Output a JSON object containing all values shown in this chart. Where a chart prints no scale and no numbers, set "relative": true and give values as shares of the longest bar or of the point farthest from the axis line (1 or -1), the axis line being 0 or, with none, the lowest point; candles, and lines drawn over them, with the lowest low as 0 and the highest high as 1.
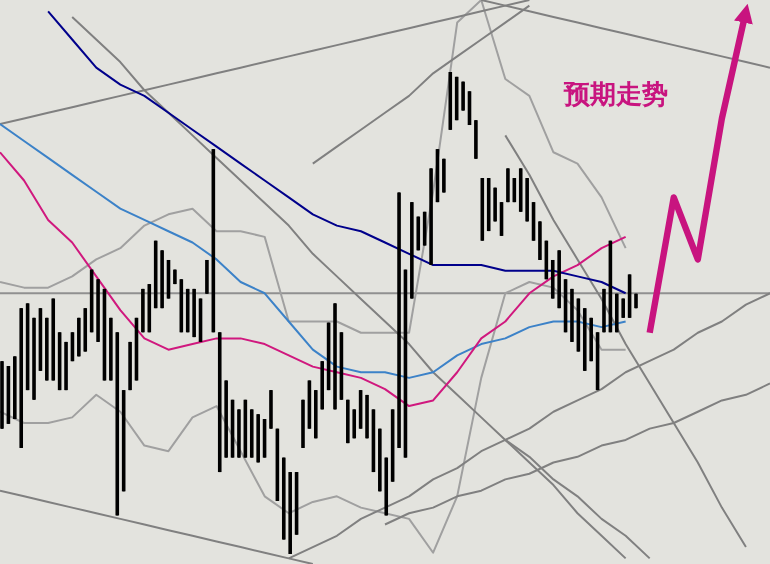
{
  "chart_data": [
    {
      "type": "candlestick",
      "relative": true,
      "categories": [
        null,
        null,
        null,
        null,
        null,
        null,
        null,
        null,
        null,
        null,
        null,
        null,
        null,
        null,
        null,
        null,
        null,
        null,
        null,
        null,
        null,
        null,
        null,
        null,
        null,
        null,
        null,
        null,
        null,
        null,
        null,
        null,
        null,
        null,
        null,
        null,
        null,
        null,
        null,
        null,
        null,
        null,
        null,
        null,
        null,
        null,
        null,
        null,
        null,
        null,
        null,
        null,
        null,
        null,
        null,
        null,
        null,
        null,
        null,
        null,
        null,
        null,
        null,
        null,
        null,
        null,
        null,
        null,
        null,
        null,
        null,
        null,
        null,
        null,
        null,
        null,
        null,
        null,
        null,
        null,
        null,
        null,
        null,
        null,
        null,
        null,
        null,
        null,
        null,
        null,
        null,
        null,
        null,
        null,
        null,
        null,
        null,
        null,
        null,
        null
      ],
      "ohlc": [
        [
          0.4,
          0.4,
          0.26,
          0.26
        ],
        [
          0.39,
          0.39,
          0.27,
          0.27
        ],
        [
          0.41,
          0.41,
          0.28,
          0.28
        ],
        [
          0.51,
          0.51,
          0.22,
          0.22
        ],
        [
          0.52,
          0.52,
          0.34,
          0.34
        ],
        [
          0.49,
          0.49,
          0.32,
          0.32
        ],
        [
          0.51,
          0.51,
          0.38,
          0.38
        ],
        [
          0.49,
          0.49,
          0.36,
          0.36
        ],
        [
          0.53,
          0.53,
          0.36,
          0.36
        ],
        [
          0.46,
          0.46,
          0.34,
          0.34
        ],
        [
          0.44,
          0.44,
          0.34,
          0.34
        ],
        [
          0.46,
          0.46,
          0.4,
          0.4
        ],
        [
          0.49,
          0.49,
          0.41,
          0.41
        ],
        [
          0.51,
          0.51,
          0.42,
          0.42
        ],
        [
          0.59,
          0.59,
          0.46,
          0.46
        ],
        [
          0.57,
          0.57,
          0.44,
          0.44
        ],
        [
          0.55,
          0.55,
          0.36,
          0.36
        ],
        [
          0.49,
          0.49,
          0.36,
          0.36
        ],
        [
          0.46,
          0.46,
          0.08,
          0.08
        ],
        [
          0.34,
          0.34,
          0.13,
          0.13
        ],
        [
          0.44,
          0.44,
          0.34,
          0.34
        ],
        [
          0.49,
          0.49,
          0.36,
          0.36
        ],
        [
          0.55,
          0.55,
          0.46,
          0.46
        ],
        [
          0.56,
          0.56,
          0.46,
          0.46
        ],
        [
          0.65,
          0.65,
          0.51,
          0.51
        ],
        [
          0.63,
          0.63,
          0.51,
          0.51
        ],
        [
          0.61,
          0.61,
          0.53,
          0.53
        ],
        [
          0.59,
          0.59,
          0.56,
          0.56
        ],
        [
          0.57,
          0.57,
          0.46,
          0.46
        ],
        [
          0.55,
          0.55,
          0.46,
          0.46
        ],
        [
          0.55,
          0.55,
          0.45,
          0.45
        ],
        [
          0.53,
          0.53,
          0.44,
          0.44
        ],
        [
          0.61,
          0.61,
          0.54,
          0.54
        ],
        [
          0.84,
          0.84,
          0.46,
          0.46
        ],
        [
          0.46,
          0.46,
          0.17,
          0.17
        ],
        [
          0.36,
          0.36,
          0.2,
          0.2
        ],
        [
          0.32,
          0.32,
          0.2,
          0.2
        ],
        [
          0.3,
          0.3,
          0.2,
          0.2
        ],
        [
          0.32,
          0.32,
          0.2,
          0.2
        ],
        [
          0.3,
          0.3,
          0.2,
          0.2
        ],
        [
          0.29,
          0.29,
          0.19,
          0.19
        ],
        [
          0.28,
          0.28,
          0.2,
          0.2
        ],
        [
          0.34,
          0.34,
          0.26,
          0.26
        ],
        [
          0.26,
          0.26,
          0.11,
          0.11
        ],
        [
          0.2,
          0.2,
          0.03,
          0.03
        ],
        [
          0.17,
          0.17,
          0,
          0
        ],
        [
          0.17,
          0.17,
          0.04,
          0.04
        ],
        [
          0.32,
          0.32,
          0.22,
          0.22
        ],
        [
          0.36,
          0.36,
          0.26,
          0.26
        ],
        [
          0.34,
          0.34,
          0.24,
          0.24
        ],
        [
          0.4,
          0.4,
          0.3,
          0.3
        ],
        [
          0.48,
          0.48,
          0.34,
          0.34
        ],
        [
          0.52,
          0.52,
          0.3,
          0.3
        ],
        [
          0.46,
          0.46,
          0.32,
          0.32
        ],
        [
          0.32,
          0.32,
          0.23,
          0.23
        ],
        [
          0.3,
          0.3,
          0.24,
          0.24
        ],
        [
          0.34,
          0.34,
          0.26,
          0.26
        ],
        [
          0.33,
          0.33,
          0.24,
          0.24
        ],
        [
          0.3,
          0.3,
          0.17,
          0.17
        ],
        [
          0.26,
          0.26,
          0.13,
          0.13
        ],
        [
          0.2,
          0.2,
          0.08,
          0.08
        ],
        [
          0.3,
          0.3,
          0.15,
          0.15
        ],
        [
          0.75,
          0.75,
          0.22,
          0.22
        ],
        [
          0.59,
          0.59,
          0.2,
          0.2
        ],
        [
          0.73,
          0.73,
          0.53,
          0.53
        ],
        [
          0.7,
          0.7,
          0.63,
          0.63
        ],
        [
          0.71,
          0.71,
          0.64,
          0.64
        ],
        [
          0.8,
          0.8,
          0.6,
          0.6
        ],
        [
          0.84,
          0.84,
          0.73,
          0.73
        ],
        [
          0.82,
          0.82,
          0.75,
          0.75
        ],
        [
          1,
          1,
          0.88,
          0.88
        ],
        [
          0.99,
          0.99,
          0.9,
          0.9
        ],
        [
          0.98,
          0.98,
          0.92,
          0.92
        ],
        [
          0.96,
          0.96,
          0.89,
          0.89
        ],
        [
          0.9,
          0.9,
          0.82,
          0.82
        ],
        [
          0.78,
          0.78,
          0.65,
          0.65
        ],
        [
          0.78,
          0.78,
          0.67,
          0.67
        ],
        [
          0.76,
          0.76,
          0.69,
          0.69
        ],
        [
          0.73,
          0.73,
          0.66,
          0.66
        ],
        [
          0.8,
          0.8,
          0.73,
          0.73
        ],
        [
          0.78,
          0.78,
          0.73,
          0.73
        ],
        [
          0.8,
          0.8,
          0.71,
          0.71
        ],
        [
          0.78,
          0.78,
          0.69,
          0.69
        ],
        [
          0.73,
          0.73,
          0.65,
          0.65
        ],
        [
          0.69,
          0.69,
          0.61,
          0.61
        ],
        [
          0.65,
          0.65,
          0.57,
          0.57
        ],
        [
          0.61,
          0.61,
          0.53,
          0.53
        ],
        [
          0.63,
          0.63,
          0.51,
          0.51
        ],
        [
          0.57,
          0.57,
          0.46,
          0.46
        ],
        [
          0.55,
          0.55,
          0.44,
          0.44
        ],
        [
          0.53,
          0.53,
          0.42,
          0.42
        ],
        [
          0.51,
          0.51,
          0.38,
          0.38
        ],
        [
          0.49,
          0.49,
          0.4,
          0.4
        ],
        [
          0.46,
          0.46,
          0.34,
          0.34
        ],
        [
          0.55,
          0.55,
          0.46,
          0.46
        ],
        [
          0.65,
          0.65,
          0.46,
          0.46
        ],
        [
          0.54,
          0.54,
          0.46,
          0.46
        ],
        [
          0.53,
          0.53,
          0.49,
          0.49
        ],
        [
          0.58,
          0.58,
          0.49,
          0.49
        ],
        [
          0.54,
          0.54,
          0.51,
          0.51
        ]
      ]
    },
    {
      "type": "line",
      "relative": true,
      "categories": [
        null,
        null,
        null,
        null,
        null,
        null,
        null,
        null,
        null,
        null,
        null,
        null,
        null,
        null,
        null,
        null,
        null,
        null,
        null,
        null,
        null,
        null,
        null,
        null,
        null,
        null,
        null,
        null,
        null,
        null,
        null,
        null,
        null
      ],
      "series": [
        {
          "color": "#a0a0a0",
          "values": [
            0.5,
            0.49,
            0.49,
            0.51,
            0.54,
            0.56,
            0.6,
            0.62,
            0.63,
            0.59,
            0.59,
            0.58,
            0.43,
            0.43,
            0.43,
            0.41,
            0.41,
            0.41,
            0.66,
            0.96,
            1,
            0.86,
            0.83,
            0.73,
            0.71,
            0.65,
            0.56,
            null,
            null,
            null,
            null,
            null,
            null
          ]
        },
        {
          "color": "#a0a0a0",
          "values": [
            0.27,
            0.25,
            0.25,
            0.26,
            0.3,
            0.27,
            0.21,
            0.2,
            0.26,
            0.28,
            0.2,
            0.12,
            0.09,
            0.11,
            0.12,
            0.1,
            0.09,
            0.08,
            0.02,
            0.12,
            0.33,
            0.48,
            0.5,
            0.49,
            0.45,
            0.38,
            0.38,
            null,
            null,
            null,
            null,
            null,
            null
          ]
        },
        {
          "color": "#808080",
          "values": [
            0.78,
            0.79,
            0.8,
            0.81,
            0.82,
            0.83,
            0.84,
            0.85,
            0.86,
            0.87,
            0.88,
            0.89,
            0.9,
            0.91,
            0.92,
            0.93,
            0.94,
            0.95,
            0.96,
            0.97,
            0.98,
            0.99,
            1.0,
            null,
            null,
            null,
            null,
            null,
            null,
            null,
            null,
            null,
            null
          ]
        },
        {
          "color": "#808080",
          "values": [
            null,
            null,
            null,
            0.97,
            0.93,
            0.89,
            0.84,
            0.8,
            0.76,
            0.72,
            0.68,
            0.64,
            0.6,
            0.55,
            0.51,
            0.47,
            0.43,
            0.39,
            0.34,
            0.3,
            0.26,
            0.22,
            0.18,
            0.14,
            0.09,
            0.05,
            0.01,
            null,
            null,
            null,
            null,
            null,
            null
          ]
        },
        {
          "color": "#808080",
          "values": [
            0.13,
            0.12,
            0.11,
            0.1,
            0.09,
            0.08,
            0.07,
            0.06,
            0.05,
            0.04,
            0.03,
            0.02,
            0.01,
            0,
            null,
            null,
            null,
            null,
            null,
            null,
            null,
            null,
            null,
            null,
            null,
            null,
            null,
            null,
            null,
            null,
            null,
            null,
            null
          ]
        },
        {
          "color": "#808080",
          "values": [
            null,
            null,
            null,
            null,
            null,
            null,
            null,
            null,
            null,
            null,
            null,
            null,
            0.01,
            0.03,
            0.05,
            0.08,
            0.1,
            0.12,
            0.15,
            0.17,
            0.2,
            0.22,
            0.24,
            0.27,
            0.29,
            0.31,
            0.34,
            0.36,
            0.38,
            0.41,
            0.43,
            0.46,
            0.48
          ]
        },
        {
          "color": "#808080",
          "values": [
            null,
            null,
            null,
            null,
            null,
            null,
            null,
            null,
            null,
            null,
            null,
            null,
            null,
            null,
            null,
            null,
            0.07,
            0.09,
            0.1,
            0.12,
            0.13,
            0.15,
            0.16,
            0.18,
            0.19,
            0.21,
            0.22,
            0.24,
            0.25,
            0.27,
            0.29,
            0.3,
            0.32
          ]
        },
        {
          "color": "#808080",
          "values": [
            null,
            null,
            null,
            null,
            null,
            null,
            null,
            null,
            null,
            null,
            null,
            null,
            null,
            0.71,
            0.74,
            0.77,
            0.8,
            0.83,
            0.87,
            0.9,
            0.93,
            0.96,
            0.99,
            null,
            null,
            null,
            null,
            null,
            null,
            null,
            null,
            null,
            null
          ]
        },
        {
          "color": "#808080",
          "values": [
            null,
            null,
            null,
            null,
            null,
            null,
            null,
            null,
            null,
            null,
            null,
            null,
            null,
            null,
            null,
            null,
            null,
            null,
            null,
            null,
            1,
            0.99,
            0.98,
            0.97,
            0.96,
            0.95,
            0.94,
            0.93,
            0.92,
            0.91,
            0.9,
            0.89,
            0.88
          ]
        },
        {
          "color": "#808080",
          "values": [
            null,
            null,
            null,
            null,
            null,
            null,
            null,
            null,
            null,
            null,
            null,
            null,
            null,
            null,
            null,
            null,
            null,
            null,
            null,
            null,
            null,
            0.76,
            0.69,
            0.61,
            0.54,
            0.47,
            0.39,
            0.32,
            0.25,
            0.18,
            0.1,
            0.03,
            null
          ]
        },
        {
          "color": "#808080",
          "values": [
            null,
            null,
            null,
            null,
            null,
            null,
            null,
            null,
            null,
            null,
            null,
            null,
            null,
            null,
            null,
            null,
            null,
            null,
            null,
            null,
            null,
            0.22,
            0.19,
            0.15,
            0.12,
            0.08,
            0.05,
            0.01,
            null,
            null,
            null,
            null,
            null
          ]
        },
        {
          "color": "#3c82c8",
          "values": [
            0.78,
            0.75,
            0.72,
            0.69,
            0.66,
            0.63,
            0.61,
            0.59,
            0.57,
            0.54,
            0.5,
            0.48,
            0.43,
            0.38,
            0.35,
            0.34,
            0.34,
            0.33,
            0.34,
            0.37,
            0.39,
            0.4,
            0.42,
            0.43,
            0.43,
            0.42,
            0.43,
            null,
            null,
            null,
            null,
            null,
            null
          ]
        },
        {
          "color": "#d0187e",
          "values": [
            0.73,
            0.68,
            0.61,
            0.57,
            0.51,
            0.45,
            0.4,
            0.38,
            0.39,
            0.4,
            0.4,
            0.39,
            0.37,
            0.35,
            0.34,
            0.33,
            0.31,
            0.28,
            0.29,
            0.34,
            0.4,
            0.43,
            0.48,
            0.51,
            0.53,
            0.56,
            0.58,
            null,
            null,
            null,
            null,
            null,
            null
          ]
        },
        {
          "color": "#00008b",
          "values": [
            null,
            null,
            0.98,
            0.93,
            0.88,
            0.85,
            0.83,
            0.8,
            0.77,
            0.74,
            0.71,
            0.68,
            0.65,
            0.62,
            0.6,
            0.59,
            0.57,
            0.55,
            0.53,
            0.53,
            0.53,
            0.52,
            0.52,
            0.52,
            0.51,
            0.5,
            0.48,
            null,
            null,
            null,
            null,
            null,
            null
          ]
        },
        {
          "color": "#c8147f",
          "values": [
            null,
            null,
            null,
            null,
            null,
            null,
            null,
            null,
            null,
            null,
            null,
            null,
            null,
            null,
            null,
            null,
            null,
            null,
            null,
            null,
            null,
            null,
            null,
            null,
            null,
            null,
            null,
            0.41,
            0.65,
            0.54,
            0.79,
            0.98,
            null
          ]
        }
      ],
      "ref_lines": [
        {
          "axis": "y",
          "value": 0.48,
          "color": "#909090"
        }
      ],
      "annotations": [
        "预期走势"
      ]
    }
  ]
}
